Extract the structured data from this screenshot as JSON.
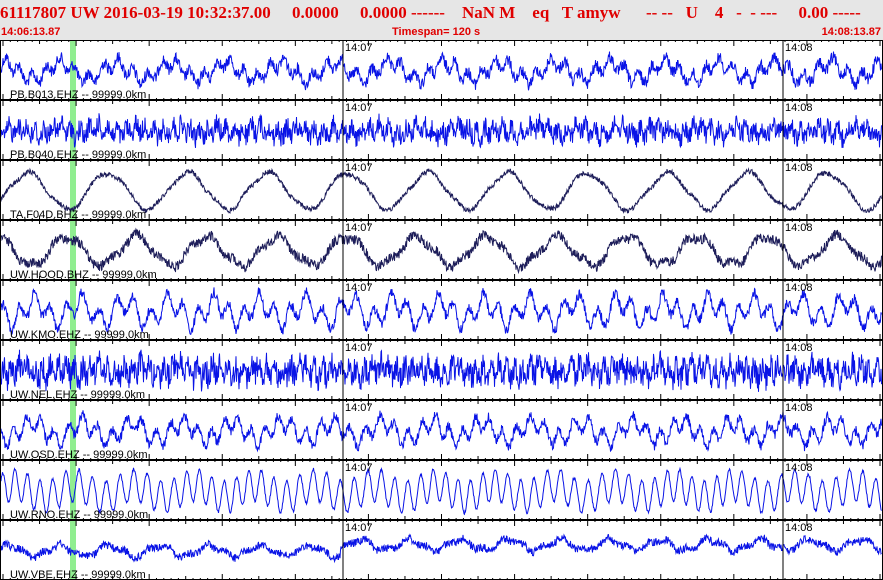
{
  "header": {
    "title_line": "61117807 UW 2016-03-19 10:32:37.00     0.0000     0.0000 ------    NaN M    eq   T amyw      -- --   U    4   -  - ---     0.00 -----",
    "start_time": "14:06:13.87",
    "timespan": "Timespan= 120 s",
    "end_time": "14:08:13.87"
  },
  "minute_labels": [
    "14:07",
    "14:08"
  ],
  "colors": {
    "trace_blue": "#0a14e6",
    "trace_navy": "#1e1e5a",
    "pick_marker": "#90ee90",
    "header_text": "#e00000",
    "header_bg": "#e6e6e6"
  },
  "channels": [
    {
      "label": "PB.B013.EHZ -- 99999.0km",
      "color": "trace_blue"
    },
    {
      "label": "PB.B040.EHZ -- 99999.0km",
      "color": "trace_blue"
    },
    {
      "label": "TA.F04D.BHZ -- 99999.0km",
      "color": "trace_navy"
    },
    {
      "label": "UW.HOOD.BHZ -- 99999.0km",
      "color": "trace_navy"
    },
    {
      "label": "UW.KMO.EHZ -- 99999.0km",
      "color": "trace_blue"
    },
    {
      "label": "UW.NEL.EHZ -- 99999.0km",
      "color": "trace_blue"
    },
    {
      "label": "UW.OSD.EHZ -- 99999.0km",
      "color": "trace_blue"
    },
    {
      "label": "UW.RNO.EHZ -- 99999.0km",
      "color": "trace_blue"
    },
    {
      "label": "UW.VBE.EHZ -- 99999.0km",
      "color": "trace_blue"
    }
  ]
}
